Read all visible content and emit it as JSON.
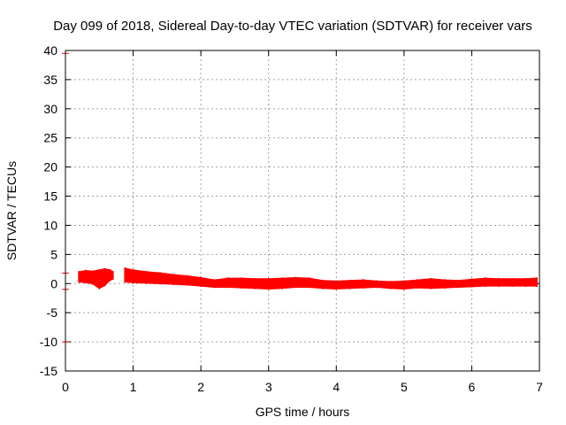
{
  "chart_data": {
    "type": "scatter",
    "title": "Day 099 of 2018, Sidereal Day-to-day VTEC variation (SDTVAR) for receiver vars",
    "xlabel": "GPS time / hours",
    "ylabel": "SDTVAR / TECUs",
    "xlim": [
      0,
      7
    ],
    "ylim": [
      -15,
      40
    ],
    "xticks": [
      0,
      1,
      2,
      3,
      4,
      5,
      6,
      7
    ],
    "yticks": [
      -15,
      -10,
      -5,
      0,
      5,
      10,
      15,
      20,
      25,
      30,
      35,
      40
    ],
    "grid": true,
    "series_color": "#ff0000",
    "series": [
      {
        "name": "SDTVAR",
        "band": [
          {
            "x": 0.2,
            "lo": 0.3,
            "hi": 2.0
          },
          {
            "x": 0.3,
            "lo": 0.2,
            "hi": 2.2
          },
          {
            "x": 0.4,
            "lo": 0.0,
            "hi": 2.1
          },
          {
            "x": 0.5,
            "lo": -0.8,
            "hi": 2.3
          },
          {
            "x": 0.58,
            "lo": -0.3,
            "hi": 2.5
          },
          {
            "x": 0.66,
            "lo": 0.6,
            "hi": 2.3
          },
          {
            "x": 0.7,
            "lo": 0.8,
            "hi": 2.0
          },
          {
            "x": "gap"
          },
          {
            "x": 0.88,
            "lo": 0.3,
            "hi": 2.6
          },
          {
            "x": 1.0,
            "lo": 0.2,
            "hi": 2.3
          },
          {
            "x": 1.2,
            "lo": 0.1,
            "hi": 2.0
          },
          {
            "x": 1.4,
            "lo": 0.0,
            "hi": 1.8
          },
          {
            "x": 1.6,
            "lo": -0.1,
            "hi": 1.5
          },
          {
            "x": 1.8,
            "lo": -0.2,
            "hi": 1.3
          },
          {
            "x": 2.0,
            "lo": -0.4,
            "hi": 1.0
          },
          {
            "x": 2.2,
            "lo": -0.6,
            "hi": 0.6
          },
          {
            "x": 2.4,
            "lo": -0.6,
            "hi": 0.9
          },
          {
            "x": 2.6,
            "lo": -0.7,
            "hi": 0.9
          },
          {
            "x": 2.8,
            "lo": -0.8,
            "hi": 0.8
          },
          {
            "x": 3.0,
            "lo": -0.9,
            "hi": 0.8
          },
          {
            "x": 3.2,
            "lo": -0.8,
            "hi": 0.9
          },
          {
            "x": 3.4,
            "lo": -0.6,
            "hi": 1.0
          },
          {
            "x": 3.6,
            "lo": -0.6,
            "hi": 0.9
          },
          {
            "x": 3.8,
            "lo": -0.8,
            "hi": 0.5
          },
          {
            "x": 4.0,
            "lo": -0.9,
            "hi": 0.4
          },
          {
            "x": 4.2,
            "lo": -0.8,
            "hi": 0.5
          },
          {
            "x": 4.4,
            "lo": -0.7,
            "hi": 0.6
          },
          {
            "x": 4.6,
            "lo": -0.6,
            "hi": 0.4
          },
          {
            "x": 4.8,
            "lo": -0.8,
            "hi": 0.3
          },
          {
            "x": 5.0,
            "lo": -0.9,
            "hi": 0.4
          },
          {
            "x": 5.2,
            "lo": -0.7,
            "hi": 0.6
          },
          {
            "x": 5.4,
            "lo": -0.8,
            "hi": 0.8
          },
          {
            "x": 5.6,
            "lo": -0.7,
            "hi": 0.6
          },
          {
            "x": 5.8,
            "lo": -0.6,
            "hi": 0.5
          },
          {
            "x": 6.0,
            "lo": -0.5,
            "hi": 0.7
          },
          {
            "x": 6.2,
            "lo": -0.4,
            "hi": 0.9
          },
          {
            "x": 6.4,
            "lo": -0.4,
            "hi": 0.8
          },
          {
            "x": 6.6,
            "lo": -0.4,
            "hi": 0.8
          },
          {
            "x": 6.8,
            "lo": -0.4,
            "hi": 0.8
          },
          {
            "x": 6.96,
            "lo": -0.4,
            "hi": 0.9
          }
        ],
        "outliers": [
          {
            "x": 0.0,
            "y": 39.5
          },
          {
            "x": 0.0,
            "y": 1.8
          },
          {
            "x": 0.0,
            "y": -1.0
          },
          {
            "x": 0.0,
            "y": -10.0
          }
        ]
      }
    ]
  }
}
